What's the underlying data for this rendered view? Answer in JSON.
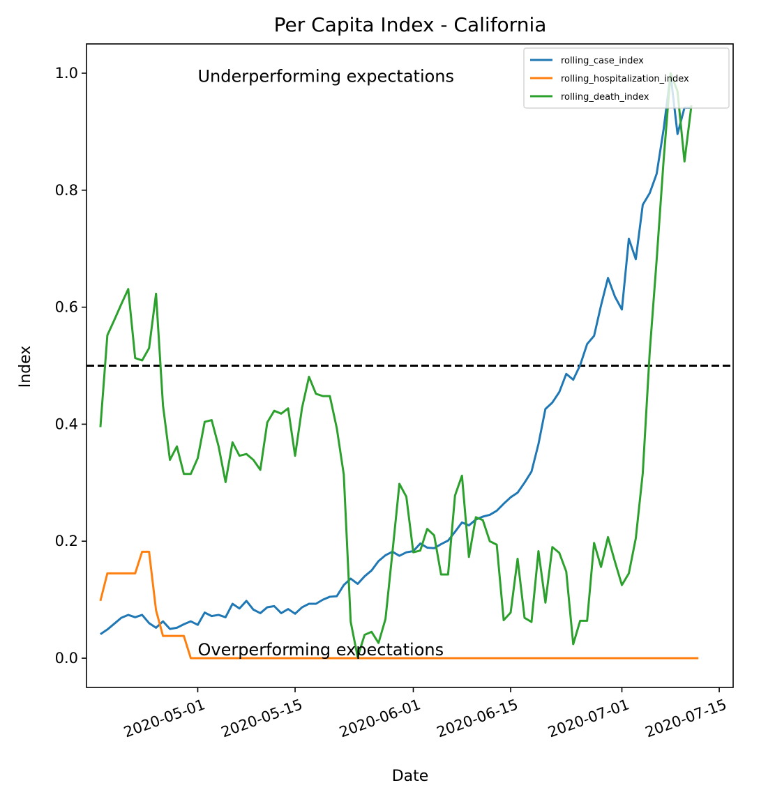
{
  "chart_data": {
    "type": "line",
    "title": "Per Capita Index - California",
    "xlabel": "Date",
    "ylabel": "Index",
    "x_start": "2020-04-17",
    "x_end": "2020-07-13",
    "xlim": [
      "2020-04-15",
      "2020-07-17"
    ],
    "ylim": [
      -0.05,
      1.05
    ],
    "x_ticks": [
      "2020-05-01",
      "2020-05-15",
      "2020-06-01",
      "2020-06-15",
      "2020-07-01",
      "2020-07-15"
    ],
    "y_ticks": [
      0.0,
      0.2,
      0.4,
      0.6,
      0.8,
      1.0
    ],
    "y_tick_labels": [
      "0.0",
      "0.2",
      "0.4",
      "0.6",
      "0.8",
      "1.0"
    ],
    "legend_position": "top-right",
    "reference_line": {
      "y": 0.5,
      "style": "dashed",
      "color": "#000000"
    },
    "annotations": [
      {
        "text": "Underperforming expectations",
        "date": "2020-05-01",
        "y": 0.985
      },
      {
        "text": "Overperforming expectations",
        "date": "2020-05-01",
        "y": 0.005
      }
    ],
    "series": [
      {
        "name": "rolling_case_index",
        "color": "#1f77b4",
        "values": [
          0.041,
          0.049,
          0.059,
          0.069,
          0.074,
          0.07,
          0.074,
          0.06,
          0.052,
          0.063,
          0.05,
          0.052,
          0.058,
          0.063,
          0.057,
          0.078,
          0.072,
          0.074,
          0.07,
          0.093,
          0.085,
          0.098,
          0.083,
          0.077,
          0.087,
          0.089,
          0.077,
          0.084,
          0.076,
          0.087,
          0.093,
          0.093,
          0.1,
          0.105,
          0.106,
          0.125,
          0.136,
          0.127,
          0.14,
          0.15,
          0.166,
          0.176,
          0.182,
          0.175,
          0.181,
          0.183,
          0.196,
          0.189,
          0.188,
          0.195,
          0.201,
          0.216,
          0.232,
          0.227,
          0.237,
          0.242,
          0.245,
          0.252,
          0.264,
          0.275,
          0.283,
          0.3,
          0.319,
          0.366,
          0.426,
          0.437,
          0.455,
          0.486,
          0.476,
          0.501,
          0.537,
          0.551,
          0.603,
          0.65,
          0.618,
          0.596,
          0.717,
          0.682,
          0.775,
          0.795,
          0.828,
          0.904,
          0.998,
          0.896,
          0.941,
          0.941
        ]
      },
      {
        "name": "rolling_hospitalization_index",
        "color": "#ff7f0e",
        "values": [
          0.098,
          0.145,
          0.145,
          0.145,
          0.145,
          0.145,
          0.182,
          0.182,
          0.082,
          0.038,
          0.038,
          0.038,
          0.038,
          0.0,
          0.0,
          0.0,
          0.0,
          0.0,
          0.0,
          0.0,
          0.0,
          0.0,
          0.0,
          0.0,
          0.0,
          0.0,
          0.0,
          0.0,
          0.0,
          0.0,
          0.0,
          0.0,
          0.0,
          0.0,
          0.0,
          0.0,
          0.0,
          0.0,
          0.0,
          0.0,
          0.0,
          0.0,
          0.0,
          0.0,
          0.0,
          0.0,
          0.0,
          0.0,
          0.0,
          0.0,
          0.0,
          0.0,
          0.0,
          0.0,
          0.0,
          0.0,
          0.0,
          0.0,
          0.0,
          0.0,
          0.0,
          0.0,
          0.0,
          0.0,
          0.0,
          0.0,
          0.0,
          0.0,
          0.0,
          0.0,
          0.0,
          0.0,
          0.0,
          0.0,
          0.0,
          0.0,
          0.0,
          0.0,
          0.0,
          0.0,
          0.0,
          0.0,
          0.0,
          0.0,
          0.0,
          0.0,
          0.0
        ]
      },
      {
        "name": "rolling_death_index",
        "color": "#2ca02c",
        "values": [
          0.395,
          0.552,
          0.578,
          0.605,
          0.631,
          0.513,
          0.509,
          0.53,
          0.623,
          0.432,
          0.339,
          0.362,
          0.315,
          0.315,
          0.342,
          0.404,
          0.407,
          0.362,
          0.301,
          0.369,
          0.346,
          0.349,
          0.339,
          0.322,
          0.403,
          0.423,
          0.418,
          0.427,
          0.346,
          0.428,
          0.481,
          0.452,
          0.448,
          0.448,
          0.393,
          0.314,
          0.062,
          0.002,
          0.04,
          0.045,
          0.026,
          0.067,
          0.181,
          0.298,
          0.276,
          0.181,
          0.184,
          0.221,
          0.21,
          0.143,
          0.143,
          0.278,
          0.312,
          0.173,
          0.241,
          0.236,
          0.2,
          0.194,
          0.065,
          0.078,
          0.17,
          0.069,
          0.062,
          0.183,
          0.095,
          0.19,
          0.18,
          0.148,
          0.024,
          0.064,
          0.064,
          0.197,
          0.156,
          0.207,
          0.165,
          0.125,
          0.145,
          0.205,
          0.316,
          0.523,
          0.681,
          0.851,
          1.0,
          0.969,
          0.849,
          0.945
        ]
      }
    ]
  }
}
